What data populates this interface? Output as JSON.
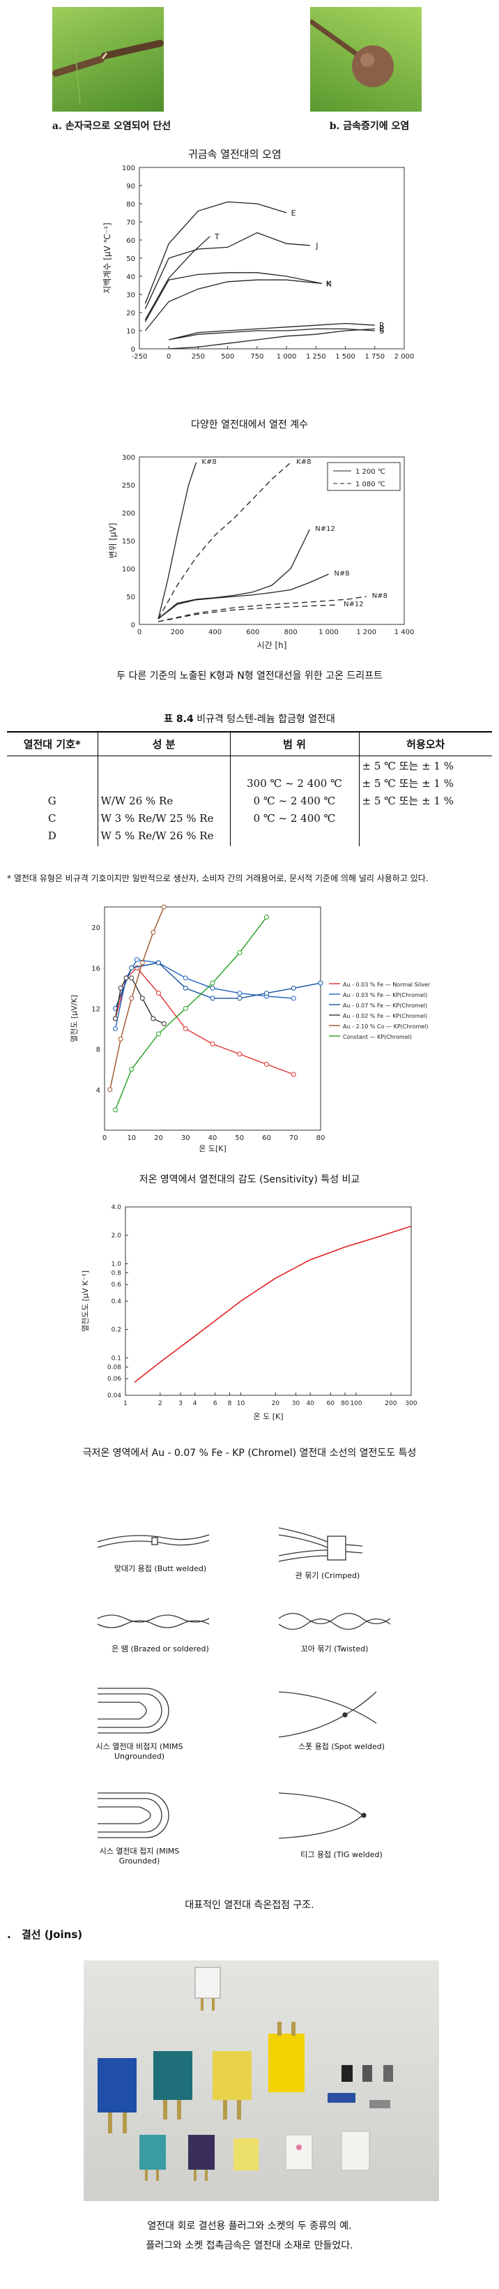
{
  "photos_top": {
    "left_caption": "a. 손자국으로 오염되어 단선",
    "right_caption": "b. 금속증기에 오염"
  },
  "fig1": {
    "chart_data": {
      "type": "line",
      "title": "귀금속 열전대의 오염",
      "ylabel": "지벡계수 [μV ℃⁻¹]",
      "xlabel": "",
      "xlim": [
        -250,
        2000
      ],
      "ylim": [
        0,
        100
      ],
      "xticks": [
        "-250",
        "0",
        "250",
        "500",
        "750",
        "1 000",
        "1 250",
        "1 500",
        "1 750",
        "2 000"
      ],
      "yticks": [
        "0",
        "10",
        "20",
        "30",
        "40",
        "50",
        "60",
        "70",
        "80",
        "90",
        "100"
      ],
      "series": [
        {
          "name": "E",
          "x": [
            -200,
            0,
            250,
            500,
            750,
            1000
          ],
          "y": [
            25,
            58,
            76,
            81,
            80,
            75
          ]
        },
        {
          "name": "T",
          "x": [
            -200,
            0,
            200,
            350
          ],
          "y": [
            16,
            39,
            53,
            62
          ]
        },
        {
          "name": "J",
          "x": [
            -200,
            0,
            250,
            500,
            750,
            1000,
            1200
          ],
          "y": [
            22,
            50,
            55,
            56,
            64,
            58,
            57
          ]
        },
        {
          "name": "K",
          "x": [
            -200,
            0,
            250,
            500,
            750,
            1000,
            1300
          ],
          "y": [
            15,
            38,
            41,
            42,
            42,
            40,
            36
          ]
        },
        {
          "name": "N",
          "x": [
            -200,
            0,
            250,
            500,
            750,
            1000,
            1300
          ],
          "y": [
            10,
            26,
            33,
            37,
            38,
            38,
            36
          ]
        },
        {
          "name": "R",
          "x": [
            0,
            250,
            500,
            750,
            1000,
            1250,
            1500,
            1750
          ],
          "y": [
            5,
            9,
            10,
            11,
            12,
            13,
            14,
            13
          ]
        },
        {
          "name": "S",
          "x": [
            0,
            250,
            500,
            750,
            1000,
            1250,
            1500,
            1750
          ],
          "y": [
            5,
            8,
            9,
            10,
            10,
            11,
            11,
            10
          ]
        },
        {
          "name": "B",
          "x": [
            0,
            250,
            500,
            750,
            1000,
            1250,
            1500,
            1750
          ],
          "y": [
            0,
            1,
            3,
            5,
            7,
            8,
            10,
            11
          ]
        }
      ]
    },
    "caption": "다양한 열전대에서 열전 계수"
  },
  "fig2": {
    "chart_data": {
      "type": "line",
      "ylabel": "변위 [μV]",
      "xlabel": "시간 [h]",
      "xlim": [
        0,
        1400
      ],
      "ylim": [
        0,
        300
      ],
      "xticks": [
        "0",
        "200",
        "400",
        "600",
        "800",
        "1 000",
        "1 200",
        "1 400"
      ],
      "yticks": [
        "0",
        "50",
        "100",
        "150",
        "200",
        "250",
        "300"
      ],
      "legend": [
        "1 200 ℃",
        "1 080 ℃"
      ],
      "legend_position": "top-right",
      "series": [
        {
          "name": "K#8",
          "style": "solid",
          "x": [
            100,
            150,
            200,
            260,
            300
          ],
          "y": [
            10,
            80,
            160,
            250,
            290
          ]
        },
        {
          "name": "K#8",
          "style": "dashed",
          "x": [
            100,
            200,
            300,
            400,
            500,
            600,
            700,
            800
          ],
          "y": [
            10,
            70,
            120,
            160,
            190,
            225,
            260,
            290
          ]
        },
        {
          "name": "N#12",
          "style": "solid",
          "x": [
            100,
            200,
            300,
            400,
            500,
            600,
            700,
            800,
            900
          ],
          "y": [
            10,
            38,
            45,
            48,
            52,
            58,
            70,
            100,
            170
          ]
        },
        {
          "name": "N#8",
          "style": "solid",
          "x": [
            100,
            200,
            300,
            400,
            500,
            600,
            700,
            800,
            900,
            1000
          ],
          "y": [
            10,
            36,
            44,
            47,
            50,
            53,
            57,
            62,
            75,
            90
          ]
        },
        {
          "name": "N#8",
          "style": "dashed",
          "x": [
            100,
            300,
            500,
            700,
            900,
            1100,
            1200
          ],
          "y": [
            5,
            20,
            30,
            36,
            40,
            45,
            50
          ]
        },
        {
          "name": "N#12",
          "style": "dashed",
          "x": [
            100,
            300,
            500,
            700,
            900,
            1050
          ],
          "y": [
            5,
            18,
            26,
            30,
            33,
            35
          ]
        }
      ]
    },
    "caption": "두 다른 기준의 노출된 K형과 N형 열전대선을 위한 고온 드리프트"
  },
  "table": {
    "title_prefix": "표 8.4",
    "title": "비규격 텅스텐-레늄 합금형 열전대",
    "headers": [
      "열전대 기호*",
      "성 분",
      "범 위",
      "허용오차"
    ],
    "rows": [
      {
        "symbol": "G",
        "composition": "W/W 26 % Re",
        "range": "300 ℃ ~ 2 400 ℃",
        "tolerance": "± 5 ℃ 또는 ± 1 %"
      },
      {
        "symbol": "C",
        "composition": "W 3 % Re/W 25 % Re",
        "range": "0 ℃ ~ 2 400 ℃",
        "tolerance": "± 5 ℃ 또는 ± 1 %"
      },
      {
        "symbol": "D",
        "composition": "W 5 % Re/W 26 % Re",
        "range": "0 ℃ ~ 2 400 ℃",
        "tolerance": "± 5 ℃ 또는 ± 1 %"
      }
    ],
    "footnote": "* 열전대 유형은 비규격 기호이지만 일반적으로 생산자, 소비자 간의 거래용어로, 문서적 기준에 의해 널리 사용하고 있다."
  },
  "fig3": {
    "chart_data": {
      "type": "line",
      "ylabel": "열전도 [μV/K]",
      "xlabel": "온 도[K]",
      "xlim": [
        0,
        80
      ],
      "ylim": [
        0,
        22
      ],
      "xticks": [
        "0",
        "10",
        "20",
        "30",
        "40",
        "50",
        "60",
        "70",
        "80"
      ],
      "yticks": [
        "4",
        "8",
        "12",
        "16",
        "20"
      ],
      "legend_position": "right",
      "series": [
        {
          "name": "Au - 0.03 % Fe — Normal Silver",
          "color": "#e03030",
          "x": [
            4,
            8,
            12,
            20,
            30,
            40,
            50,
            60,
            70
          ],
          "y": [
            11,
            15,
            16,
            13.5,
            10,
            8.5,
            7.5,
            6.5,
            5.5
          ]
        },
        {
          "name": "Au - 0.03 % Fe — KP(Chromel)",
          "color": "#2060c0",
          "x": [
            4,
            8,
            12,
            20,
            30,
            40,
            50,
            60,
            70
          ],
          "y": [
            10,
            15,
            16.8,
            16.5,
            15,
            14,
            13.5,
            13.2,
            13
          ]
        },
        {
          "name": "Au - 0.07 % Fe — KP(Chromel)",
          "color": "#1050a0",
          "x": [
            4,
            10,
            20,
            30,
            40,
            50,
            60,
            70,
            80
          ],
          "y": [
            12,
            16,
            16.5,
            14,
            13,
            13,
            13.5,
            14,
            14.5
          ]
        },
        {
          "name": "Au - 0.02 % Fe — KP(Chromel)",
          "color": "#303030",
          "x": [
            4,
            6,
            8,
            10,
            14,
            18,
            22
          ],
          "y": [
            11,
            14,
            15,
            15,
            13,
            11,
            10.5
          ]
        },
        {
          "name": "Au - 2.10 % Co — KP(Chromel)",
          "color": "#a0502a",
          "x": [
            2,
            6,
            10,
            14,
            18,
            22
          ],
          "y": [
            4,
            9,
            13,
            16.5,
            19.5,
            22
          ]
        },
        {
          "name": "Constant — KP(Chromel)",
          "color": "#20a020",
          "x": [
            4,
            10,
            20,
            30,
            40,
            50,
            60
          ],
          "y": [
            2,
            6,
            9.5,
            12,
            14.5,
            17.5,
            21
          ]
        }
      ]
    },
    "caption": "저온 영역에서 열전대의 감도 (Sensitivity) 특성 비교"
  },
  "fig4": {
    "chart_data": {
      "type": "line",
      "ylabel": "열전도도 [μV K⁻¹]",
      "xlabel": "온 도 [K]",
      "scale": "log-log",
      "xticks": [
        "1",
        "2",
        "3",
        "4",
        "6",
        "8",
        "10",
        "20",
        "30",
        "40",
        "60",
        "80",
        "100",
        "200",
        "300"
      ],
      "yticks": [
        "0.04",
        "0.06",
        "0.08",
        "0.1",
        "0.2",
        "0.4",
        "0.6",
        "0.8",
        "1.0",
        "2.0",
        "4.0"
      ],
      "series": [
        {
          "name": "Au - 0.07 % Fe - KP (Chromel)",
          "color": "#e02020",
          "x": [
            1.2,
            2,
            4,
            10,
            20,
            40,
            80,
            150,
            300
          ],
          "y": [
            0.055,
            0.09,
            0.17,
            0.4,
            0.7,
            1.1,
            1.5,
            1.9,
            2.5
          ]
        }
      ]
    },
    "caption": "극저온 영역에서 Au - 0.07 % Fe - KP (Chromel) 열전대 소선의 열전도도 특성"
  },
  "junctions": {
    "labels": [
      "맞대기 용접 (Butt welded)",
      "관 묶기 (Crimped)",
      "은 땜 (Brazed or soldered)",
      "꼬아 묶기 (Twisted)",
      "시스 열전대 비접지 (MIMS Ungrounded)",
      "스폿 용접 (Spot welded)",
      "시스 열전대 접지 (MIMS Grounded)",
      "티그 용접 (TIG welded)"
    ],
    "caption": "대표적인 열전대 측온접점 구조."
  },
  "section": {
    "bullet": ".",
    "title": "결선 (Joins)"
  },
  "plug_photo": {
    "caption_line1": "열전대 회로 결선용 플러그와 소켓의 두 종류의 예.",
    "caption_line2": "플러그와 소켓 접촉금속은 열전대 소재로 만들었다."
  },
  "colors": {
    "grass": "#6fa83a",
    "photo_bg": "#d9d9d6"
  }
}
